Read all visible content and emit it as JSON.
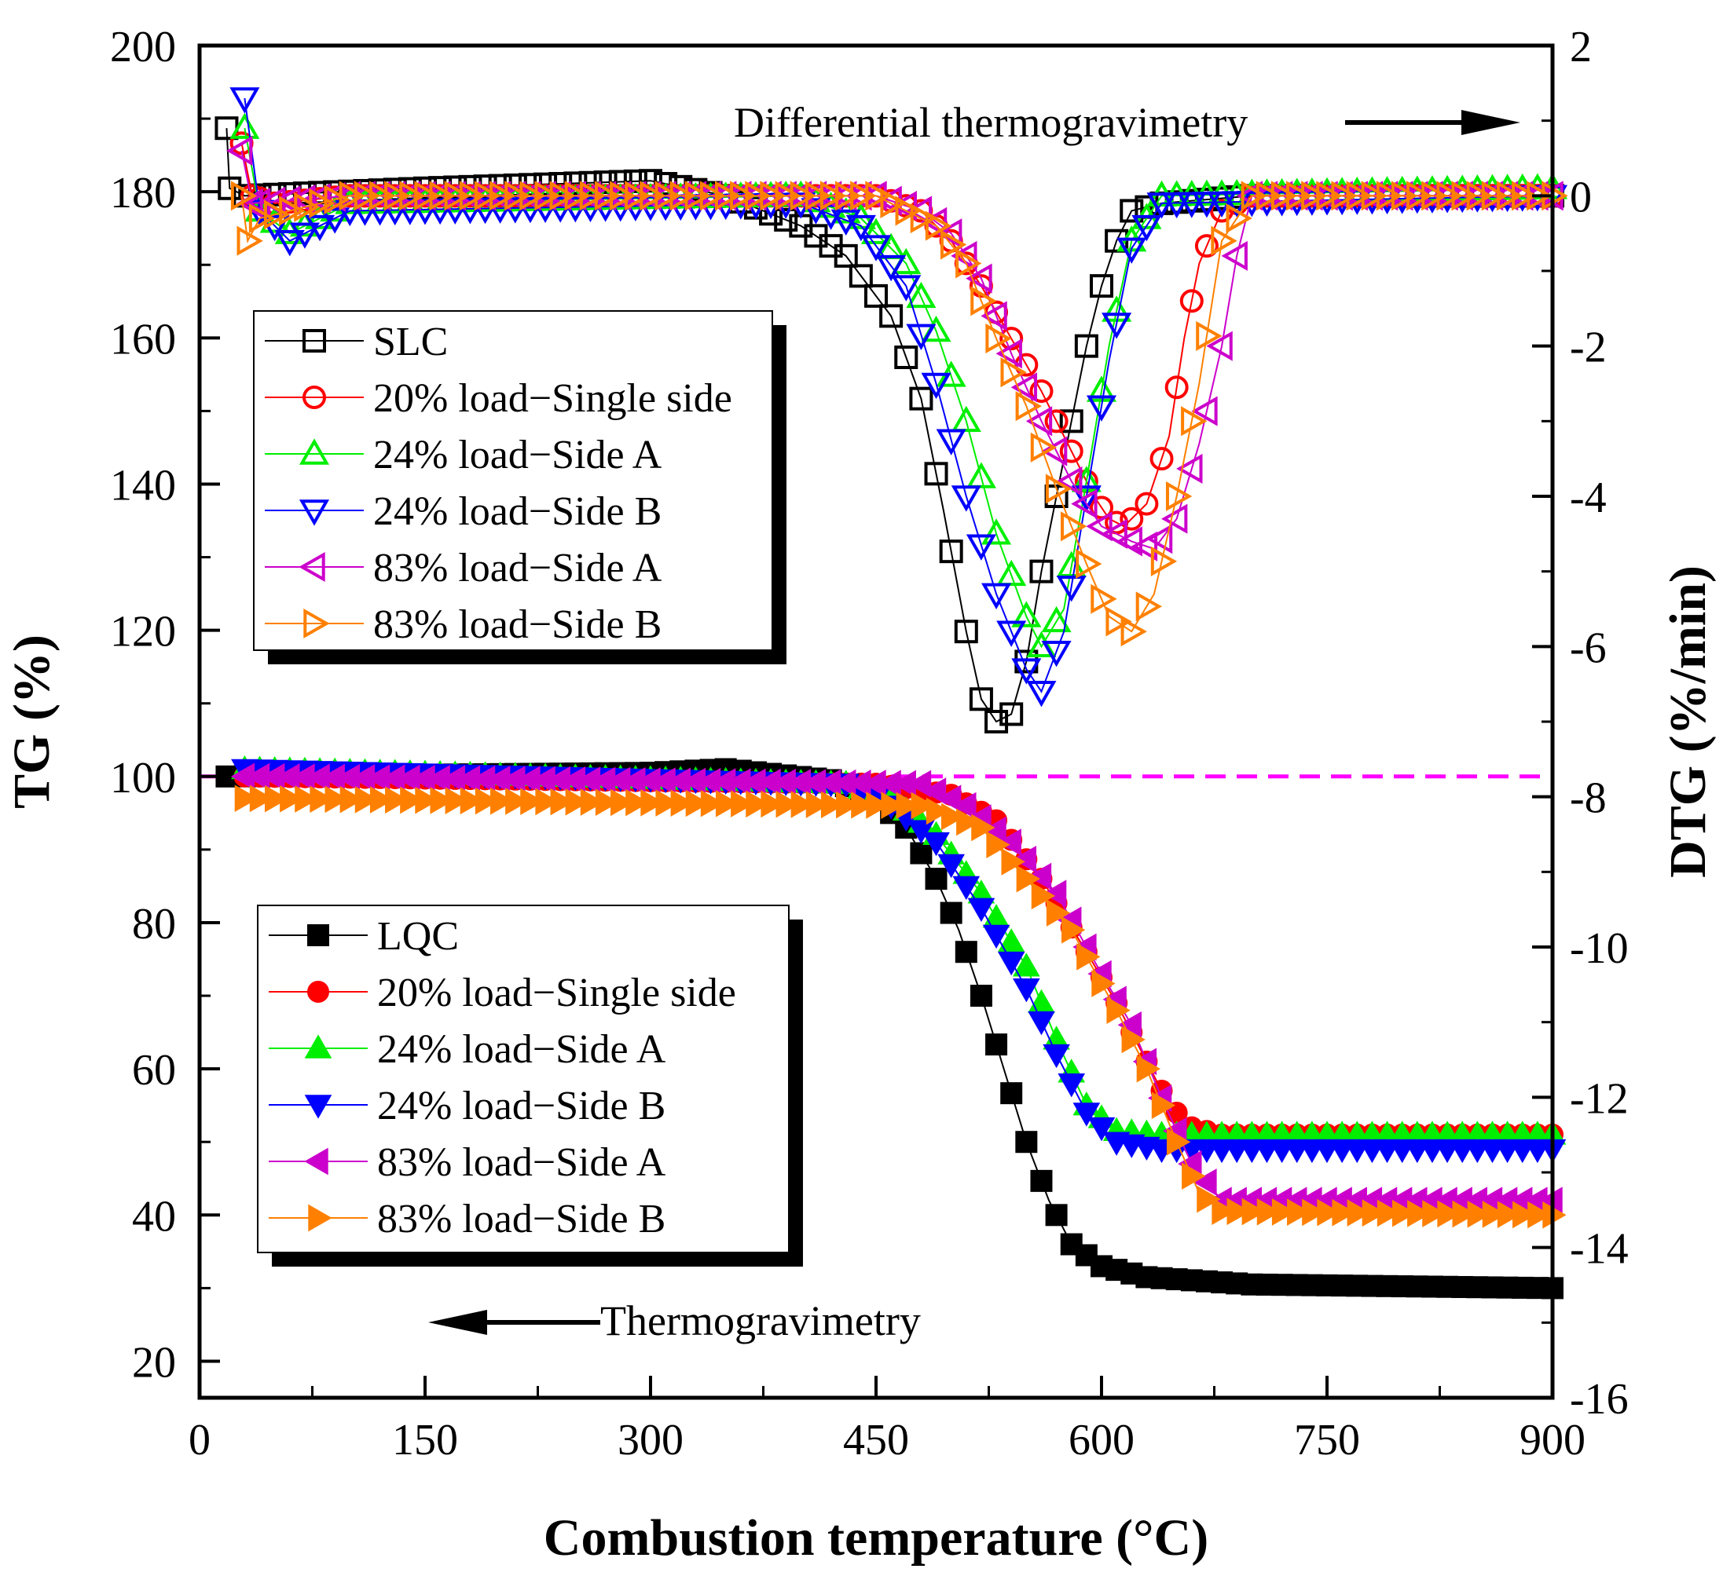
{
  "chart_data": {
    "type": "line",
    "xlabel": "Combustion temperature (°C)",
    "ylabel": "TG (%)",
    "y2label": "DTG (%/min)",
    "xlim": [
      0,
      900
    ],
    "ylim": [
      15,
      200
    ],
    "y2lim": [
      -16,
      2
    ],
    "xticks": [
      0,
      150,
      300,
      450,
      600,
      750,
      900
    ],
    "yticks": [
      20,
      40,
      60,
      80,
      100,
      120,
      140,
      160,
      180,
      200
    ],
    "y2ticks": [
      2,
      0,
      -2,
      -4,
      -6,
      -8,
      -10,
      -12,
      -14,
      -16
    ],
    "annotations": {
      "dtg": "Differential thermogravimetry",
      "tg": "Thermogravimetry"
    },
    "reference_line": {
      "axis": "TG",
      "value": 100,
      "color": "#ff00ff"
    },
    "dtg_series": [
      {
        "name": "SLC",
        "color": "#000000",
        "marker": "square",
        "points": [
          [
            18,
            0.9
          ],
          [
            20,
            0.1
          ],
          [
            30,
            0
          ],
          [
            150,
            0.1
          ],
          [
            300,
            0.2
          ],
          [
            350,
            0
          ],
          [
            400,
            -0.4
          ],
          [
            430,
            -0.8
          ],
          [
            460,
            -1.6
          ],
          [
            480,
            -2.7
          ],
          [
            495,
            -4.2
          ],
          [
            510,
            -5.8
          ],
          [
            520,
            -6.7
          ],
          [
            530,
            -7.0
          ],
          [
            540,
            -6.9
          ],
          [
            550,
            -6.2
          ],
          [
            560,
            -5.0
          ],
          [
            570,
            -4.0
          ],
          [
            580,
            -3.0
          ],
          [
            590,
            -2.0
          ],
          [
            600,
            -1.2
          ],
          [
            610,
            -0.6
          ],
          [
            620,
            -0.2
          ],
          [
            640,
            -0.1
          ],
          [
            700,
            0
          ],
          [
            900,
            0
          ]
        ]
      },
      {
        "name": "20% load−Single side",
        "color": "#ff0000",
        "marker": "circle",
        "points": [
          [
            28,
            0.7
          ],
          [
            35,
            0
          ],
          [
            50,
            -0.1
          ],
          [
            100,
            0
          ],
          [
            450,
            0
          ],
          [
            480,
            -0.2
          ],
          [
            500,
            -0.6
          ],
          [
            520,
            -1.2
          ],
          [
            540,
            -1.9
          ],
          [
            560,
            -2.6
          ],
          [
            580,
            -3.4
          ],
          [
            595,
            -4.0
          ],
          [
            605,
            -4.3
          ],
          [
            615,
            -4.4
          ],
          [
            630,
            -4.1
          ],
          [
            645,
            -3.2
          ],
          [
            655,
            -1.9
          ],
          [
            665,
            -0.9
          ],
          [
            680,
            -0.2
          ],
          [
            700,
            0
          ],
          [
            900,
            0
          ]
        ]
      },
      {
        "name": "24% load−Side A",
        "color": "#00ee00",
        "marker": "triangle-up",
        "points": [
          [
            30,
            0.9
          ],
          [
            40,
            -0.2
          ],
          [
            60,
            -0.5
          ],
          [
            100,
            -0.1
          ],
          [
            400,
            0
          ],
          [
            440,
            -0.3
          ],
          [
            470,
            -0.9
          ],
          [
            490,
            -1.8
          ],
          [
            510,
            -3.0
          ],
          [
            530,
            -4.5
          ],
          [
            550,
            -5.6
          ],
          [
            560,
            -6.0
          ],
          [
            575,
            -5.5
          ],
          [
            590,
            -3.8
          ],
          [
            605,
            -2.0
          ],
          [
            620,
            -0.6
          ],
          [
            640,
            0
          ],
          [
            900,
            0.1
          ]
        ]
      },
      {
        "name": "24% load−Side B",
        "color": "#0000ff",
        "marker": "triangle-down",
        "points": [
          [
            30,
            1.3
          ],
          [
            40,
            -0.2
          ],
          [
            60,
            -0.6
          ],
          [
            100,
            -0.2
          ],
          [
            400,
            -0.1
          ],
          [
            440,
            -0.4
          ],
          [
            470,
            -1.2
          ],
          [
            490,
            -2.5
          ],
          [
            510,
            -4.0
          ],
          [
            530,
            -5.3
          ],
          [
            550,
            -6.3
          ],
          [
            560,
            -6.6
          ],
          [
            575,
            -5.8
          ],
          [
            590,
            -4.0
          ],
          [
            605,
            -2.2
          ],
          [
            620,
            -0.7
          ],
          [
            640,
            -0.1
          ],
          [
            900,
            0
          ]
        ]
      },
      {
        "name": "83% load−Side A",
        "color": "#cc00cc",
        "marker": "triangle-left",
        "points": [
          [
            28,
            0.6
          ],
          [
            35,
            -0.1
          ],
          [
            100,
            0
          ],
          [
            450,
            0
          ],
          [
            480,
            -0.2
          ],
          [
            500,
            -0.5
          ],
          [
            520,
            -1.1
          ],
          [
            540,
            -2.1
          ],
          [
            560,
            -3.0
          ],
          [
            580,
            -3.8
          ],
          [
            600,
            -4.4
          ],
          [
            620,
            -4.6
          ],
          [
            635,
            -4.7
          ],
          [
            650,
            -4.3
          ],
          [
            665,
            -3.3
          ],
          [
            680,
            -2.0
          ],
          [
            690,
            -0.8
          ],
          [
            700,
            0
          ],
          [
            900,
            0
          ]
        ]
      },
      {
        "name": "83% load−Side B",
        "color": "#ff8000",
        "marker": "triangle-right",
        "points": [
          [
            28,
            0
          ],
          [
            32,
            -0.6
          ],
          [
            40,
            -0.3
          ],
          [
            100,
            0
          ],
          [
            450,
            0
          ],
          [
            490,
            -0.4
          ],
          [
            510,
            -0.9
          ],
          [
            530,
            -1.9
          ],
          [
            550,
            -2.8
          ],
          [
            570,
            -3.9
          ],
          [
            590,
            -4.9
          ],
          [
            605,
            -5.6
          ],
          [
            620,
            -5.8
          ],
          [
            635,
            -5.3
          ],
          [
            650,
            -4.0
          ],
          [
            665,
            -2.5
          ],
          [
            680,
            -0.6
          ],
          [
            700,
            0
          ],
          [
            900,
            0
          ]
        ]
      }
    ],
    "tg_series": [
      {
        "name": "LQC",
        "color": "#000000",
        "marker": "square",
        "points": [
          [
            18,
            100
          ],
          [
            300,
            100.5
          ],
          [
            350,
            101
          ],
          [
            420,
            99.5
          ],
          [
            450,
            97
          ],
          [
            470,
            93
          ],
          [
            490,
            86
          ],
          [
            505,
            79
          ],
          [
            520,
            70
          ],
          [
            535,
            60
          ],
          [
            550,
            50
          ],
          [
            565,
            42
          ],
          [
            580,
            36
          ],
          [
            600,
            33
          ],
          [
            630,
            31.5
          ],
          [
            700,
            30.5
          ],
          [
            900,
            30
          ]
        ]
      },
      {
        "name": "20% load−Single side",
        "color": "#ff0000",
        "marker": "circle",
        "points": [
          [
            30,
            100
          ],
          [
            450,
            99
          ],
          [
            500,
            97.5
          ],
          [
            530,
            94
          ],
          [
            560,
            86
          ],
          [
            590,
            76
          ],
          [
            610,
            69
          ],
          [
            630,
            61
          ],
          [
            645,
            55
          ],
          [
            660,
            52
          ],
          [
            680,
            51
          ],
          [
            900,
            51
          ]
        ]
      },
      {
        "name": "24% load−Side A",
        "color": "#00ee00",
        "marker": "triangle-up",
        "points": [
          [
            30,
            101
          ],
          [
            430,
            99
          ],
          [
            460,
            97
          ],
          [
            490,
            92
          ],
          [
            520,
            84
          ],
          [
            550,
            74
          ],
          [
            570,
            64
          ],
          [
            590,
            55
          ],
          [
            610,
            51.5
          ],
          [
            640,
            51
          ],
          [
            900,
            51
          ]
        ]
      },
      {
        "name": "24% load−Side B",
        "color": "#0000ff",
        "marker": "triangle-down",
        "points": [
          [
            30,
            101
          ],
          [
            430,
            99
          ],
          [
            460,
            96
          ],
          [
            490,
            91
          ],
          [
            520,
            82
          ],
          [
            550,
            71
          ],
          [
            570,
            62
          ],
          [
            590,
            54
          ],
          [
            610,
            50
          ],
          [
            640,
            49
          ],
          [
            900,
            49
          ]
        ]
      },
      {
        "name": "83% load−Side A",
        "color": "#cc00cc",
        "marker": "triangle-left",
        "points": [
          [
            30,
            100
          ],
          [
            480,
            99
          ],
          [
            510,
            96
          ],
          [
            540,
            91
          ],
          [
            570,
            84
          ],
          [
            600,
            73
          ],
          [
            620,
            66
          ],
          [
            640,
            56
          ],
          [
            660,
            47
          ],
          [
            680,
            42
          ],
          [
            900,
            42
          ]
        ]
      },
      {
        "name": "83% load−Side B",
        "color": "#ff8000",
        "marker": "triangle-right",
        "points": [
          [
            30,
            97
          ],
          [
            480,
            96
          ],
          [
            520,
            93
          ],
          [
            550,
            86
          ],
          [
            580,
            79
          ],
          [
            610,
            68
          ],
          [
            630,
            60
          ],
          [
            650,
            50
          ],
          [
            665,
            43
          ],
          [
            680,
            40.5
          ],
          [
            900,
            40
          ]
        ]
      }
    ],
    "legend_top": [
      "SLC",
      "20% load−Single side",
      "24% load−Side A",
      "24% load−Side B",
      "83% load−Side A",
      "83% load−Side B"
    ],
    "legend_bottom": [
      "LQC",
      "20% load−Single side",
      "24% load−Side A",
      "24% load−Side B",
      "83% load−Side A",
      "83% load−Side B"
    ]
  }
}
